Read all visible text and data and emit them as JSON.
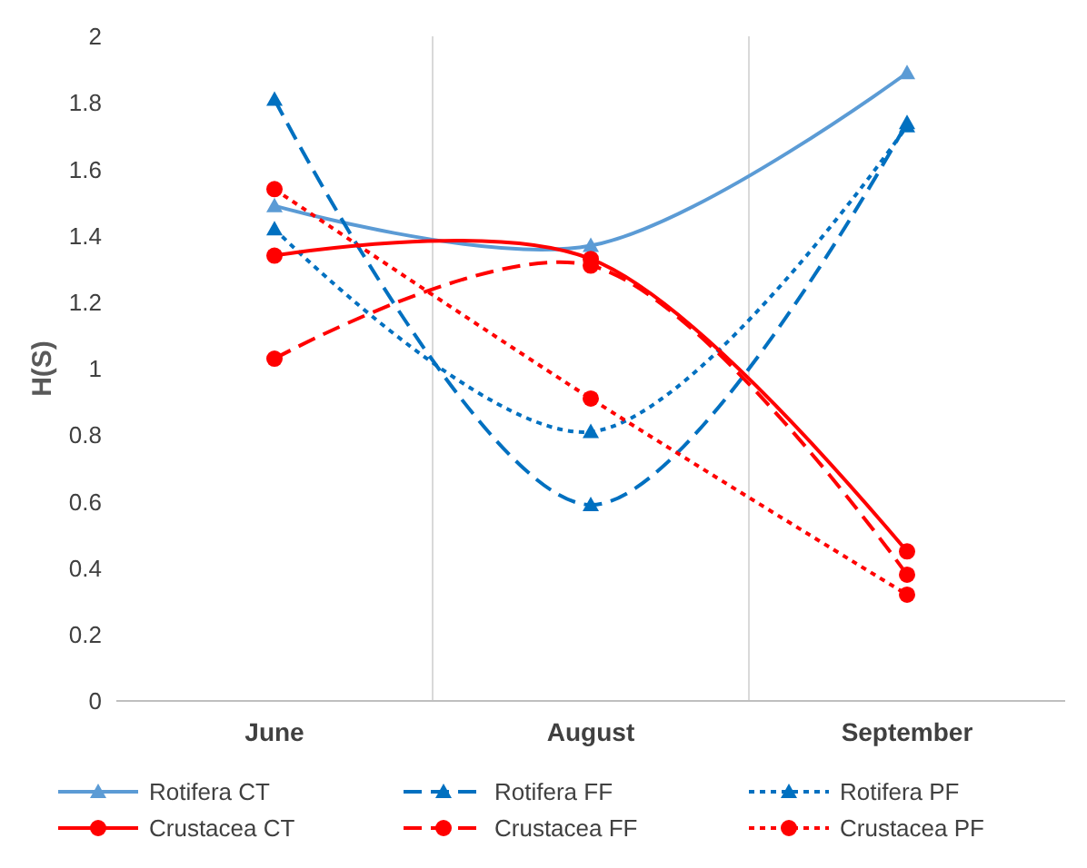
{
  "chart_data": {
    "type": "line",
    "ylabel": "H(S)",
    "categories": [
      "June",
      "August",
      "September"
    ],
    "ylim": [
      0,
      2
    ],
    "yticks": [
      0,
      0.2,
      0.4,
      0.6,
      0.8,
      1,
      1.2,
      1.4,
      1.6,
      1.8,
      2
    ],
    "grid": "x",
    "legend": "bottom",
    "series": [
      {
        "name": "Rotifera CT",
        "color": "#5b9bd5",
        "values": [
          1.49,
          1.37,
          1.89
        ],
        "marker": "triangle",
        "line_style": "solid"
      },
      {
        "name": "Rotifera FF",
        "color": "#0070c0",
        "values": [
          1.81,
          0.59,
          1.74
        ],
        "marker": "triangle",
        "line_style": "dashed"
      },
      {
        "name": "Rotifera PF",
        "color": "#0070c0",
        "values": [
          1.42,
          0.81,
          1.73
        ],
        "marker": "triangle",
        "line_style": "dotted"
      },
      {
        "name": "Crustacea CT",
        "color": "#ff0000",
        "values": [
          1.34,
          1.33,
          0.45
        ],
        "marker": "circle",
        "line_style": "solid"
      },
      {
        "name": "Crustacea FF",
        "color": "#ff0000",
        "values": [
          1.03,
          1.31,
          0.38
        ],
        "marker": "circle",
        "line_style": "dashed"
      },
      {
        "name": "Crustacea PF",
        "color": "#ff0000",
        "values": [
          1.54,
          0.91,
          0.32
        ],
        "marker": "circle",
        "line_style": "dotted"
      }
    ]
  }
}
